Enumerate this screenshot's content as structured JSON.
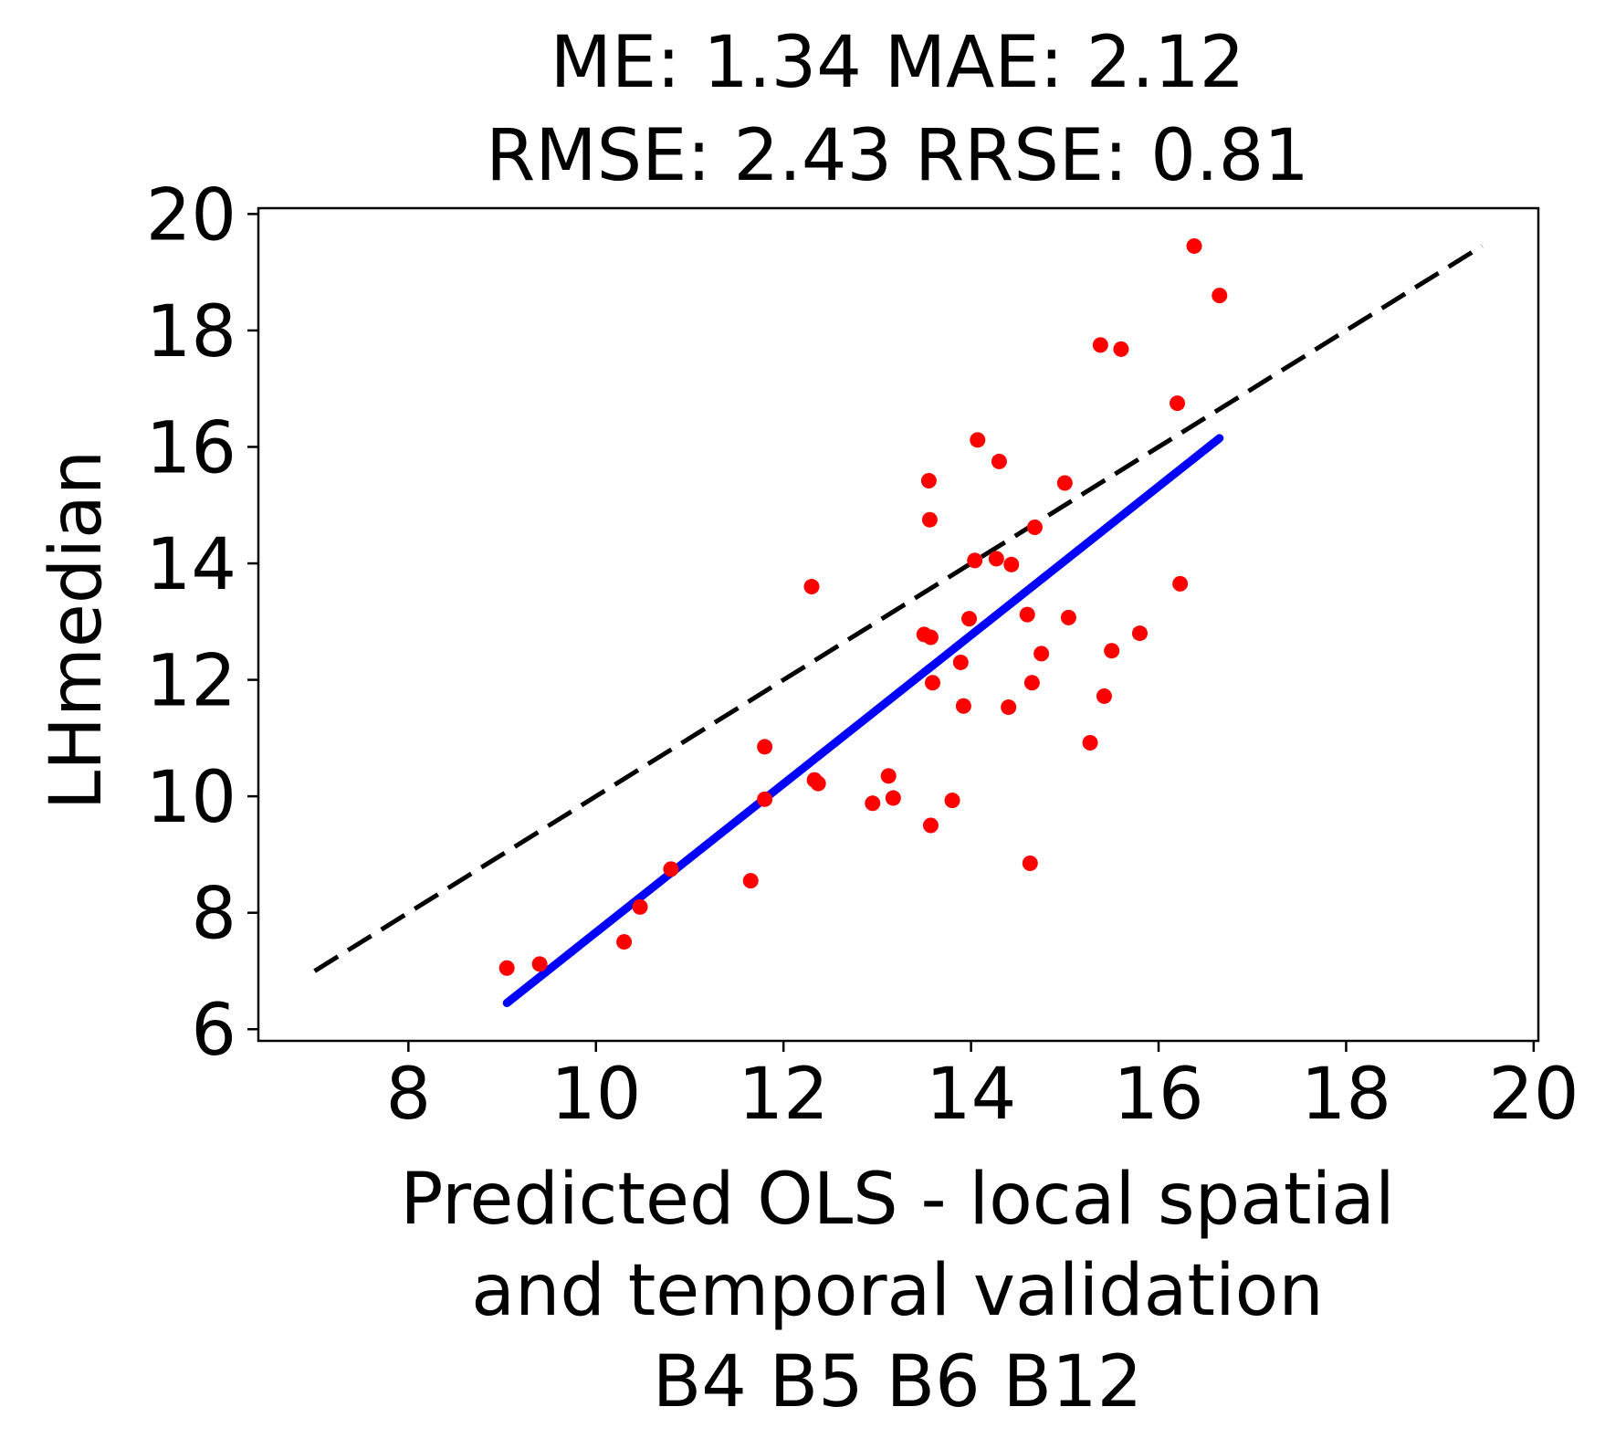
{
  "chart_data": {
    "type": "scatter",
    "title_lines": [
      "ME: 1.34 MAE: 2.12",
      "RMSE: 2.43 RRSE: 0.81"
    ],
    "xlabel_lines": [
      "Predicted OLS - local spatial",
      "and temporal validation",
      "B4 B5 B6 B12"
    ],
    "ylabel": "LHmedian",
    "xlim": [
      6.4,
      20.05
    ],
    "ylim": [
      5.8,
      20.1
    ],
    "xticks": [
      8,
      10,
      12,
      14,
      16,
      18,
      20
    ],
    "yticks": [
      6,
      8,
      10,
      12,
      14,
      16,
      18,
      20
    ],
    "grid": false,
    "points_color": "#ff0000",
    "points": [
      {
        "x": 9.05,
        "y": 7.05
      },
      {
        "x": 9.4,
        "y": 7.12
      },
      {
        "x": 10.3,
        "y": 7.5
      },
      {
        "x": 10.47,
        "y": 8.1
      },
      {
        "x": 10.8,
        "y": 8.75
      },
      {
        "x": 11.65,
        "y": 8.55
      },
      {
        "x": 11.8,
        "y": 10.85
      },
      {
        "x": 11.8,
        "y": 9.95
      },
      {
        "x": 12.3,
        "y": 13.6
      },
      {
        "x": 12.33,
        "y": 10.28
      },
      {
        "x": 12.37,
        "y": 10.22
      },
      {
        "x": 12.95,
        "y": 9.88
      },
      {
        "x": 13.12,
        "y": 10.35
      },
      {
        "x": 13.17,
        "y": 9.97
      },
      {
        "x": 13.5,
        "y": 12.78
      },
      {
        "x": 13.55,
        "y": 15.42
      },
      {
        "x": 13.56,
        "y": 14.75
      },
      {
        "x": 13.57,
        "y": 12.73
      },
      {
        "x": 13.59,
        "y": 11.95
      },
      {
        "x": 13.57,
        "y": 9.5
      },
      {
        "x": 13.8,
        "y": 9.93
      },
      {
        "x": 13.89,
        "y": 12.3
      },
      {
        "x": 13.92,
        "y": 11.55
      },
      {
        "x": 13.98,
        "y": 13.05
      },
      {
        "x": 14.04,
        "y": 14.05
      },
      {
        "x": 14.07,
        "y": 16.12
      },
      {
        "x": 14.27,
        "y": 14.08
      },
      {
        "x": 14.3,
        "y": 15.75
      },
      {
        "x": 14.4,
        "y": 11.53
      },
      {
        "x": 14.43,
        "y": 13.98
      },
      {
        "x": 14.6,
        "y": 13.12
      },
      {
        "x": 14.63,
        "y": 8.85
      },
      {
        "x": 14.65,
        "y": 11.95
      },
      {
        "x": 14.68,
        "y": 14.62
      },
      {
        "x": 14.75,
        "y": 12.45
      },
      {
        "x": 15.0,
        "y": 15.38
      },
      {
        "x": 15.04,
        "y": 13.07
      },
      {
        "x": 15.27,
        "y": 10.92
      },
      {
        "x": 15.38,
        "y": 17.75
      },
      {
        "x": 15.42,
        "y": 11.72
      },
      {
        "x": 15.5,
        "y": 12.5
      },
      {
        "x": 15.6,
        "y": 17.68
      },
      {
        "x": 15.8,
        "y": 12.8
      },
      {
        "x": 16.2,
        "y": 16.75
      },
      {
        "x": 16.23,
        "y": 13.65
      },
      {
        "x": 16.38,
        "y": 19.45
      },
      {
        "x": 16.65,
        "y": 18.6
      }
    ],
    "identity_line": {
      "x": [
        7.0,
        19.45
      ],
      "y": [
        7.0,
        19.45
      ],
      "color": "#000000",
      "style": "dashed"
    },
    "fit_line": {
      "x": [
        9.05,
        16.65
      ],
      "y": [
        6.45,
        16.15
      ],
      "color": "#0000ff",
      "style": "solid"
    }
  }
}
